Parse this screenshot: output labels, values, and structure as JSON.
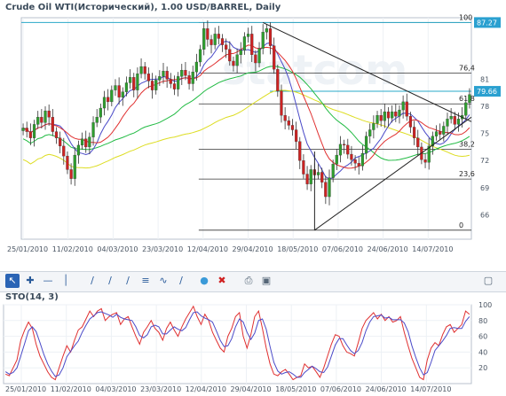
{
  "main": {
    "title": "Crude Oil WTI(Исторический), 1.00 USD/BARREL, Daily"
  },
  "sto": {
    "title": "STO(14, 3)"
  },
  "colors": {
    "up": "#2e9e2e",
    "down": "#cc2222",
    "ma_fast": "#e03030",
    "ma_mid": "#4a4ac8",
    "ma_green": "#22bb44",
    "ma_slow": "#dddd22",
    "cyan": "#2aa8c8",
    "price_tag": "#2aa0d0"
  },
  "icons": [
    "cursor-icon",
    "crosshair-icon",
    "hline-icon",
    "vline-icon",
    "trendline-icon",
    "channel-icon",
    "fan-icon",
    "fib-icon",
    "cycle-icon",
    "text-icon",
    "delete-icon",
    "print-icon",
    "save-icon",
    "trash-icon"
  ],
  "chart_data": [
    {
      "type": "candlestick",
      "x_labels": [
        "25/01/2010",
        "11/02/2010",
        "04/03/2010",
        "23/03/2010",
        "12/04/2010",
        "29/04/2010",
        "18/05/2010",
        "07/06/2010",
        "24/06/2010",
        "14/07/2010"
      ],
      "y_ticks": [
        66,
        69,
        72,
        75,
        78,
        81
      ],
      "y_range": [
        63.3,
        87.8
      ],
      "price_labels": [
        "87.27",
        "79.66"
      ],
      "price_values": [
        87.27,
        79.66
      ],
      "fib_labels": [
        "100",
        "76,4",
        "61,8",
        "38,2",
        "23,6",
        "0"
      ],
      "fib_levels": [
        87.27,
        81.66,
        78.27,
        73.26,
        69.95,
        64.3
      ],
      "closes": [
        75.6,
        75.2,
        74.5,
        76.0,
        76.8,
        76.2,
        77.5,
        76.8,
        75.2,
        74.5,
        73.6,
        72.5,
        71.0,
        70.0,
        72.6,
        73.7,
        74.4,
        73.5,
        74.6,
        76.2,
        76.8,
        77.8,
        79.0,
        78.5,
        79.8,
        80.3,
        79.0,
        79.6,
        80.6,
        81.2,
        79.8,
        81.6,
        82.4,
        81.6,
        80.8,
        79.8,
        80.9,
        81.3,
        81.9,
        81.0,
        80.5,
        79.9,
        81.3,
        82.0,
        81.4,
        80.5,
        81.8,
        82.9,
        84.3,
        86.6,
        85.4,
        84.8,
        86.0,
        85.5,
        84.8,
        84.3,
        83.0,
        82.5,
        83.7,
        84.2,
        85.7,
        86.0,
        83.7,
        82.8,
        84.4,
        86.2,
        86.6,
        84.7,
        82.1,
        79.7,
        77.0,
        76.4,
        75.9,
        75.4,
        74.1,
        72.0,
        70.5,
        69.4,
        71.0,
        70.4,
        70.7,
        69.6,
        68.0,
        70.1,
        71.6,
        72.6,
        73.8,
        73.7,
        72.7,
        72.1,
        71.7,
        71.4,
        72.8,
        74.7,
        75.4,
        76.1,
        77.0,
        76.4,
        77.4,
        76.7,
        77.4,
        76.9,
        77.6,
        78.5,
        76.9,
        75.7,
        74.5,
        73.5,
        72.1,
        71.8,
        73.6,
        74.7,
        75.2,
        74.9,
        75.8,
        76.6,
        76.9,
        76.0,
        76.6,
        77.0,
        78.4,
        79.3
      ],
      "stoch_k": [
        12,
        10,
        20,
        30,
        55,
        68,
        78,
        70,
        50,
        35,
        25,
        15,
        8,
        5,
        20,
        35,
        48,
        40,
        55,
        68,
        72,
        82,
        92,
        85,
        92,
        95,
        80,
        85,
        88,
        90,
        75,
        82,
        85,
        72,
        60,
        50,
        65,
        72,
        80,
        70,
        65,
        55,
        70,
        78,
        68,
        60,
        72,
        82,
        90,
        98,
        85,
        75,
        88,
        80,
        65,
        55,
        45,
        40,
        60,
        70,
        85,
        90,
        60,
        45,
        62,
        85,
        92,
        70,
        45,
        25,
        12,
        10,
        15,
        18,
        12,
        5,
        8,
        10,
        25,
        20,
        22,
        15,
        8,
        20,
        35,
        50,
        62,
        60,
        48,
        40,
        38,
        35,
        52,
        70,
        80,
        85,
        90,
        82,
        88,
        80,
        85,
        78,
        80,
        85,
        65,
        48,
        32,
        20,
        8,
        5,
        30,
        45,
        52,
        48,
        62,
        72,
        75,
        65,
        70,
        75,
        92,
        88
      ],
      "stoch_d": [
        15,
        12,
        14,
        20,
        35,
        51,
        67,
        72,
        66,
        52,
        37,
        25,
        16,
        9,
        11,
        20,
        34,
        41,
        48,
        54,
        65,
        74,
        82,
        86,
        90,
        91,
        89,
        87,
        84,
        88,
        84,
        82,
        81,
        80,
        72,
        61,
        58,
        62,
        72,
        74,
        72,
        63,
        63,
        68,
        72,
        69,
        67,
        71,
        81,
        90,
        91,
        86,
        83,
        81,
        78,
        67,
        55,
        47,
        48,
        57,
        72,
        82,
        78,
        65,
        56,
        64,
        80,
        82,
        69,
        47,
        27,
        16,
        12,
        14,
        15,
        12,
        8,
        8,
        14,
        18,
        22,
        19,
        15,
        14,
        21,
        35,
        49,
        57,
        57,
        49,
        42,
        38,
        42,
        52,
        67,
        78,
        85,
        86,
        87,
        83,
        84,
        81,
        81,
        81,
        77,
        66,
        48,
        33,
        20,
        11,
        14,
        27,
        42,
        48,
        54,
        61,
        70,
        71,
        70,
        70,
        79,
        85
      ],
      "sto_ticks": [
        20,
        40,
        60,
        80,
        100
      ],
      "sto_range": [
        0,
        100
      ]
    }
  ]
}
